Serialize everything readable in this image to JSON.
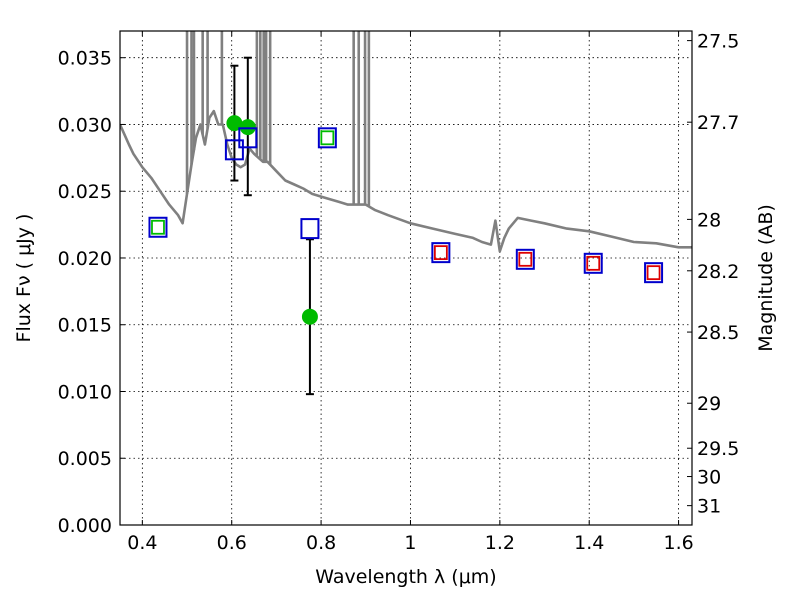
{
  "chart_data": {
    "type": "scatter",
    "xlabel": "Wavelength  λ (μm)",
    "ylabel": "Flux  Fν  ( μJy )",
    "y2label": "Magnitude (AB)",
    "xlim": [
      0.35,
      1.63
    ],
    "ylim": [
      0.0,
      0.037
    ],
    "grid": true,
    "x_ticks": [
      0.4,
      0.6,
      0.8,
      1.0,
      1.2,
      1.4,
      1.6
    ],
    "x_tick_labels": [
      "0.4",
      "0.6",
      "0.8",
      "1",
      "1.2",
      "1.4",
      "1.6"
    ],
    "y_ticks": [
      0.0,
      0.005,
      0.01,
      0.015,
      0.02,
      0.025,
      0.03,
      0.035
    ],
    "y_tick_labels": [
      "0.000",
      "0.005",
      "0.010",
      "0.015",
      "0.020",
      "0.025",
      "0.030",
      "0.035"
    ],
    "y2_ticks": [
      {
        "label": "27.5",
        "flux": 0.03628
      },
      {
        "label": "27.7",
        "flux": 0.03017
      },
      {
        "label": "28",
        "flux": 0.02289
      },
      {
        "label": "28.2",
        "flux": 0.01904
      },
      {
        "label": "28.5",
        "flux": 0.01445
      },
      {
        "label": "29",
        "flux": 0.00912
      },
      {
        "label": "29.5",
        "flux": 0.00575
      },
      {
        "label": "30",
        "flux": 0.00363
      },
      {
        "label": "31",
        "flux": 0.00145
      }
    ],
    "colors": {
      "model": "#808080",
      "observed": "#00bb00",
      "model_photometry": "#0000cc",
      "green_box": "#00bb00",
      "red_box": "#dd0000",
      "errorbar": "#000000"
    },
    "model_sed": [
      [
        0.35,
        0.03
      ],
      [
        0.37,
        0.0285
      ],
      [
        0.38,
        0.0278
      ],
      [
        0.4,
        0.0268
      ],
      [
        0.42,
        0.026
      ],
      [
        0.44,
        0.025
      ],
      [
        0.46,
        0.024
      ],
      [
        0.48,
        0.0232
      ],
      [
        0.49,
        0.0226
      ],
      [
        0.5,
        0.0248
      ],
      [
        0.51,
        0.027
      ],
      [
        0.52,
        0.029
      ],
      [
        0.53,
        0.03
      ],
      [
        0.54,
        0.0285
      ],
      [
        0.55,
        0.0305
      ],
      [
        0.56,
        0.031
      ],
      [
        0.57,
        0.03
      ],
      [
        0.58,
        0.03
      ],
      [
        0.59,
        0.0285
      ],
      [
        0.6,
        0.0275
      ],
      [
        0.61,
        0.027
      ],
      [
        0.62,
        0.0268
      ],
      [
        0.63,
        0.027
      ],
      [
        0.64,
        0.0282
      ],
      [
        0.65,
        0.0278
      ],
      [
        0.66,
        0.0275
      ],
      [
        0.67,
        0.0272
      ],
      [
        0.68,
        0.0272
      ],
      [
        0.7,
        0.0265
      ],
      [
        0.72,
        0.0258
      ],
      [
        0.74,
        0.0255
      ],
      [
        0.76,
        0.0252
      ],
      [
        0.78,
        0.0248
      ],
      [
        0.8,
        0.0246
      ],
      [
        0.82,
        0.0244
      ],
      [
        0.84,
        0.0242
      ],
      [
        0.86,
        0.024
      ],
      [
        0.88,
        0.024
      ],
      [
        0.9,
        0.024
      ],
      [
        0.92,
        0.0236
      ],
      [
        0.95,
        0.0232
      ],
      [
        1.0,
        0.0226
      ],
      [
        1.05,
        0.0222
      ],
      [
        1.1,
        0.0218
      ],
      [
        1.14,
        0.0215
      ],
      [
        1.16,
        0.0212
      ],
      [
        1.18,
        0.021
      ],
      [
        1.19,
        0.0228
      ],
      [
        1.2,
        0.0205
      ],
      [
        1.21,
        0.0215
      ],
      [
        1.22,
        0.0222
      ],
      [
        1.24,
        0.023
      ],
      [
        1.27,
        0.0228
      ],
      [
        1.3,
        0.0226
      ],
      [
        1.35,
        0.0222
      ],
      [
        1.4,
        0.022
      ],
      [
        1.45,
        0.0216
      ],
      [
        1.5,
        0.0212
      ],
      [
        1.55,
        0.0211
      ],
      [
        1.6,
        0.0208
      ],
      [
        1.63,
        0.0208
      ]
    ],
    "model_spikes_x": [
      0.5,
      0.51,
      0.5155,
      0.535,
      0.546,
      0.578,
      0.6563,
      0.664,
      0.672,
      0.6716,
      0.6731,
      0.677,
      0.686,
      0.8729,
      0.8842,
      0.8984,
      0.9069
    ],
    "observed": [
      {
        "x": 0.606,
        "y": 0.0301,
        "yerr_low": 0.0258,
        "yerr_high": 0.0344
      },
      {
        "x": 0.636,
        "y": 0.0298,
        "yerr_low": 0.0247,
        "yerr_high": 0.035
      },
      {
        "x": 0.775,
        "y": 0.0156,
        "yerr_low": 0.0098,
        "yerr_high": 0.0214
      }
    ],
    "model_photometry": [
      {
        "x": 0.435,
        "y": 0.0223,
        "inner": "green"
      },
      {
        "x": 0.606,
        "y": 0.0281,
        "inner": "none"
      },
      {
        "x": 0.636,
        "y": 0.029,
        "inner": "none"
      },
      {
        "x": 0.775,
        "y": 0.0222,
        "inner": "none"
      },
      {
        "x": 0.814,
        "y": 0.029,
        "inner": "green"
      },
      {
        "x": 1.068,
        "y": 0.0204,
        "inner": "red"
      },
      {
        "x": 1.257,
        "y": 0.0199,
        "inner": "red"
      },
      {
        "x": 1.409,
        "y": 0.0196,
        "inner": "red"
      },
      {
        "x": 1.544,
        "y": 0.0189,
        "inner": "red"
      }
    ]
  }
}
